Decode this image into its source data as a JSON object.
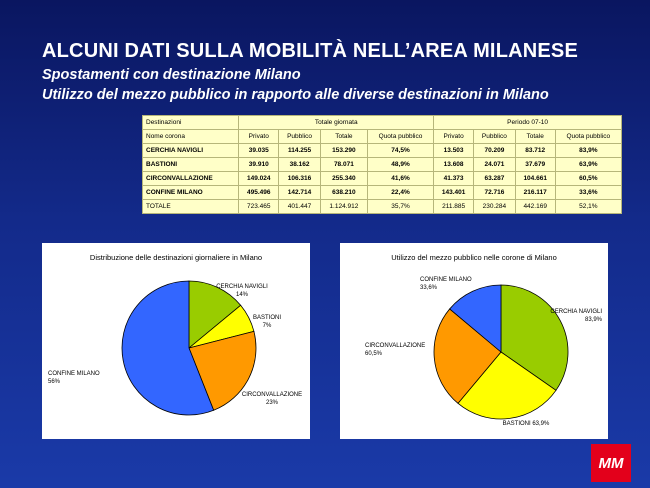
{
  "title": "ALCUNI DATI SULLA MOBILITÀ NELL’AREA MILANESE",
  "subtitle1": "Spostamenti con destinazione Milano",
  "subtitle2": "Utilizzo del mezzo pubblico in rapporto alle diverse destinazioni in Milano",
  "logo": "MM",
  "table": {
    "header": [
      "Destinazioni",
      "Totale giornata",
      "Periodo 07-10"
    ],
    "columns": [
      "Nome corona",
      "Privato",
      "Pubblico",
      "Totale",
      "Quota pubblico",
      "Privato",
      "Pubblico",
      "Totale",
      "Quota pubblico"
    ],
    "rows": [
      {
        "cells": [
          "CERCHIA NAVIGLI",
          "39.035",
          "114.255",
          "153.290",
          "74,5%",
          "13.503",
          "70.209",
          "83.712",
          "83,9%"
        ],
        "bold": true
      },
      {
        "cells": [
          "BASTIONI",
          "39.910",
          "38.162",
          "78.071",
          "48,9%",
          "13.608",
          "24.071",
          "37.679",
          "63,9%"
        ],
        "bold": true
      },
      {
        "cells": [
          "CIRCONVALLAZIONE",
          "149.024",
          "106.316",
          "255.340",
          "41,6%",
          "41.373",
          "63.287",
          "104.661",
          "60,5%"
        ],
        "bold": true
      },
      {
        "cells": [
          "CONFINE MILANO",
          "495.496",
          "142.714",
          "638.210",
          "22,4%",
          "143.401",
          "72.716",
          "216.117",
          "33,6%"
        ],
        "bold": true
      },
      {
        "cells": [
          "TOTALE",
          "723.465",
          "401.447",
          "1.124.912",
          "35,7%",
          "211.885",
          "230.284",
          "442.169",
          "52,1%"
        ],
        "bold": false
      }
    ]
  },
  "chart_data": [
    {
      "type": "pie",
      "title": "Distribuzione delle destinazioni giornaliere in Milano",
      "slices": [
        {
          "label": "CERCHIA NAVIGLI",
          "pct": "14%",
          "value": 14,
          "color": "#99cc00"
        },
        {
          "label": "BASTIONI",
          "pct": "7%",
          "value": 7,
          "color": "#ffff00"
        },
        {
          "label": "CIRCONVALLAZIONE",
          "pct": "23%",
          "value": 23,
          "color": "#ff9900"
        },
        {
          "label": "CONFINE MILANO",
          "pct": "56%",
          "value": 56,
          "color": "#3366ff"
        }
      ]
    },
    {
      "type": "pie",
      "title": "Utilizzo del mezzo pubblico nelle corone di Milano",
      "slices": [
        {
          "label": "CERCHIA NAVIGLI",
          "pct": "83,9%",
          "value": 83.9,
          "color": "#99cc00"
        },
        {
          "label": "BASTIONI",
          "pct": "63,9%",
          "value": 63.9,
          "color": "#ffff00"
        },
        {
          "label": "CIRCONVALLAZIONE",
          "pct": "60,5%",
          "value": 60.5,
          "color": "#ff9900"
        },
        {
          "label": "CONFINE MILANO",
          "pct": "33,6%",
          "value": 33.6,
          "color": "#3366ff"
        }
      ]
    }
  ]
}
